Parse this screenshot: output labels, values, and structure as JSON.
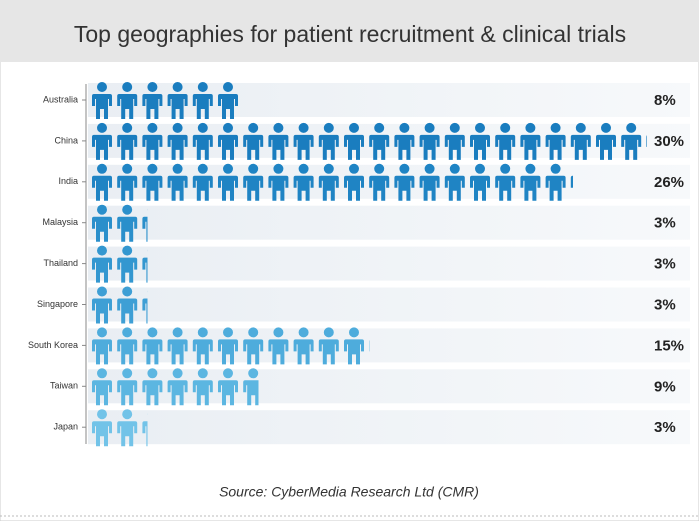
{
  "chart_data": {
    "type": "pictogram",
    "title": "Top geographies for patient recruitment & clinical trials",
    "categories": [
      "Australia",
      "China",
      "India",
      "Malaysia",
      "Thailand",
      "Singapore",
      "South Korea",
      "Taiwan",
      "Japan"
    ],
    "values": [
      8,
      30,
      26,
      3,
      3,
      3,
      15,
      9,
      3
    ],
    "value_labels": [
      "8%",
      "30%",
      "26%",
      "3%",
      "3%",
      "3%",
      "15%",
      "9%",
      "3%"
    ],
    "colors": [
      "#1a7dbf",
      "#1a7dbf",
      "#1f84c4",
      "#2a8fcb",
      "#3397d0",
      "#3e9fd5",
      "#4eacdc",
      "#5cb6e1",
      "#72c3e8"
    ],
    "source": "Source: CyberMedia Research Ltd (CMR)"
  }
}
